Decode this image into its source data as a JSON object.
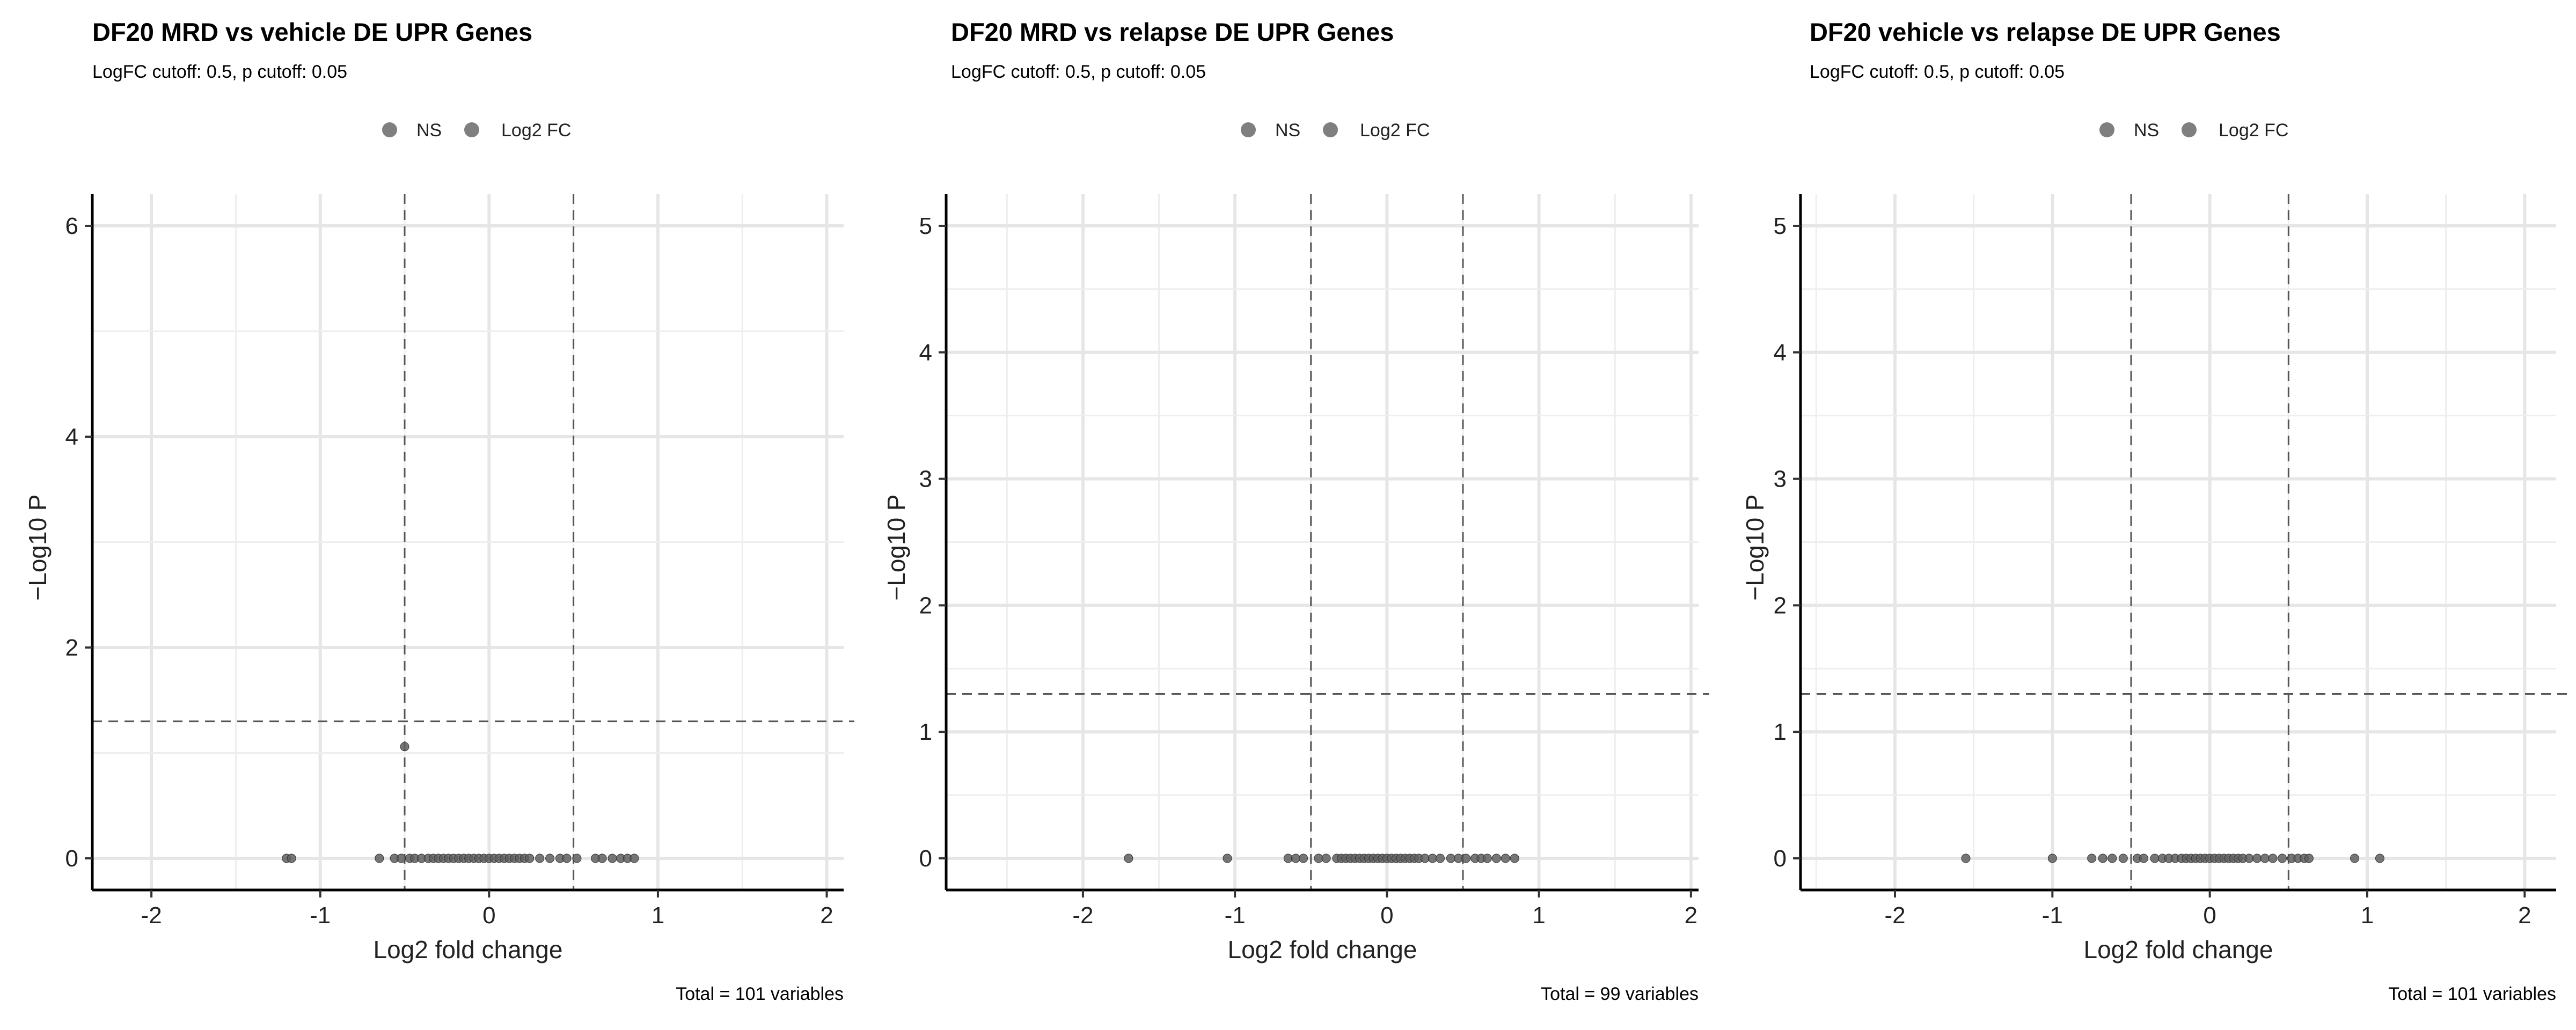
{
  "chart_data": [
    {
      "type": "scatter",
      "title": "DF20 MRD vs vehicle DE UPR Genes",
      "subtitle": "LogFC cutoff: 0.5, p cutoff: 0.05",
      "caption": "Total = 101 variables",
      "xlabel": "Log2 fold change",
      "ylabel": "−Log10 P",
      "xlim": [
        -2.35,
        2.1
      ],
      "ylim": [
        -0.3,
        6.3
      ],
      "xticks": [
        -2,
        -1,
        0,
        1,
        2
      ],
      "yticks": [
        0,
        2,
        4,
        6
      ],
      "grid": true,
      "legend_position": "top",
      "legend": [
        {
          "label": "NS",
          "color": "#7f7f7f"
        },
        {
          "label": "Log2 FC",
          "color": "#7f7f7f"
        }
      ],
      "thresholds": {
        "logfc": 0.5,
        "neg_log10_p": 1.3
      },
      "point_color": "#5f5f5f",
      "points": {
        "x": [
          -1.2,
          -1.17,
          -0.65,
          -0.56,
          -0.52,
          -0.5,
          -0.47,
          -0.44,
          -0.4,
          -0.36,
          -0.33,
          -0.3,
          -0.27,
          -0.24,
          -0.21,
          -0.18,
          -0.15,
          -0.12,
          -0.09,
          -0.06,
          -0.03,
          0.0,
          0.03,
          0.06,
          0.09,
          0.12,
          0.15,
          0.18,
          0.21,
          0.24,
          0.3,
          0.36,
          0.42,
          0.46,
          0.52,
          0.63,
          0.67,
          0.73,
          0.78,
          0.82,
          0.86
        ],
        "y": [
          0,
          0,
          0,
          0,
          0,
          1.06,
          0,
          0,
          0,
          0,
          0,
          0,
          0,
          0,
          0,
          0,
          0,
          0,
          0,
          0,
          0,
          0,
          0,
          0,
          0,
          0,
          0,
          0,
          0,
          0,
          0,
          0,
          0,
          0,
          0,
          0,
          0,
          0,
          0,
          0,
          0
        ]
      }
    },
    {
      "type": "scatter",
      "title": "DF20 MRD vs relapse DE UPR Genes",
      "subtitle": "LogFC cutoff: 0.5, p cutoff: 0.05",
      "caption": "Total = 99 variables",
      "xlabel": "Log2 fold change",
      "ylabel": "−Log10 P",
      "xlim": [
        -2.9,
        2.05
      ],
      "ylim": [
        -0.25,
        5.25
      ],
      "xticks": [
        -2,
        -1,
        0,
        1,
        2
      ],
      "yticks": [
        0,
        1,
        2,
        3,
        4,
        5
      ],
      "grid": true,
      "legend_position": "top",
      "legend": [
        {
          "label": "NS",
          "color": "#7f7f7f"
        },
        {
          "label": "Log2 FC",
          "color": "#7f7f7f"
        }
      ],
      "thresholds": {
        "logfc": 0.5,
        "neg_log10_p": 1.3
      },
      "point_color": "#5f5f5f",
      "points": {
        "x": [
          -1.7,
          -1.05,
          -0.65,
          -0.6,
          -0.55,
          -0.45,
          -0.4,
          -0.33,
          -0.3,
          -0.27,
          -0.24,
          -0.21,
          -0.18,
          -0.15,
          -0.12,
          -0.09,
          -0.06,
          -0.03,
          0.0,
          0.03,
          0.06,
          0.09,
          0.12,
          0.15,
          0.18,
          0.21,
          0.25,
          0.3,
          0.35,
          0.42,
          0.47,
          0.52,
          0.58,
          0.62,
          0.66,
          0.72,
          0.78,
          0.84
        ],
        "y": [
          0,
          0,
          0,
          0,
          0,
          0,
          0,
          0,
          0,
          0,
          0,
          0,
          0,
          0,
          0,
          0,
          0,
          0,
          0,
          0,
          0,
          0,
          0,
          0,
          0,
          0,
          0,
          0,
          0,
          0,
          0,
          0,
          0,
          0,
          0,
          0,
          0,
          0
        ]
      }
    },
    {
      "type": "scatter",
      "title": "DF20 vehicle vs relapse DE UPR Genes",
      "subtitle": "LogFC cutoff: 0.5, p cutoff: 0.05",
      "caption": "Total = 101 variables",
      "xlabel": "Log2 fold change",
      "ylabel": "−Log10 P",
      "xlim": [
        -2.6,
        2.2
      ],
      "ylim": [
        -0.25,
        5.25
      ],
      "xticks": [
        -2,
        -1,
        0,
        1,
        2
      ],
      "yticks": [
        0,
        1,
        2,
        3,
        4,
        5
      ],
      "grid": true,
      "legend_position": "top",
      "legend": [
        {
          "label": "NS",
          "color": "#7f7f7f"
        },
        {
          "label": "Log2 FC",
          "color": "#7f7f7f"
        }
      ],
      "thresholds": {
        "logfc": 0.5,
        "neg_log10_p": 1.3
      },
      "point_color": "#5f5f5f",
      "points": {
        "x": [
          -1.55,
          -1.0,
          -0.75,
          -0.68,
          -0.62,
          -0.55,
          -0.46,
          -0.42,
          -0.35,
          -0.3,
          -0.26,
          -0.22,
          -0.18,
          -0.15,
          -0.12,
          -0.09,
          -0.06,
          -0.03,
          0.0,
          0.03,
          0.06,
          0.09,
          0.12,
          0.15,
          0.18,
          0.21,
          0.25,
          0.3,
          0.35,
          0.4,
          0.46,
          0.52,
          0.56,
          0.6,
          0.63,
          0.92,
          1.08
        ],
        "y": [
          0,
          0,
          0,
          0,
          0,
          0,
          0,
          0,
          0,
          0,
          0,
          0,
          0,
          0,
          0,
          0,
          0,
          0,
          0,
          0,
          0,
          0,
          0,
          0,
          0,
          0,
          0,
          0,
          0,
          0,
          0,
          0,
          0,
          0,
          0,
          0,
          0
        ]
      }
    }
  ]
}
